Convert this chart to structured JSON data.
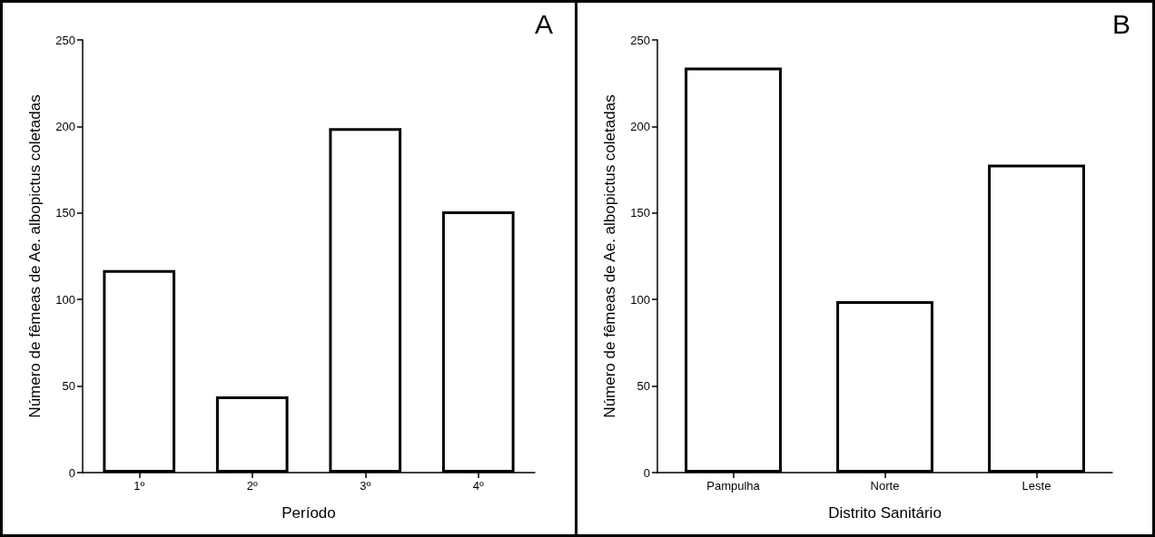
{
  "chart_data": [
    {
      "type": "bar",
      "xlabel": "Período",
      "ylabel": "Número de fêmeas de Ae. albopictus coletadas",
      "categories": [
        "1º",
        "2º",
        "3º",
        "4º"
      ],
      "values": [
        117,
        44,
        199,
        151
      ],
      "color": "#ffffff",
      "ylim": [
        0,
        250
      ],
      "yticks": [
        0,
        50,
        100,
        150,
        200,
        250
      ],
      "grid": false,
      "annotations": [
        "A"
      ]
    },
    {
      "type": "bar",
      "xlabel": "Distrito Sanitário",
      "ylabel": "Número de fêmeas de Ae. albopictus coletadas",
      "categories": [
        "Pampulha",
        "Norte",
        "Leste"
      ],
      "values": [
        234,
        99,
        178
      ],
      "color": "#ffffff",
      "ylim": [
        0,
        250
      ],
      "yticks": [
        0,
        50,
        100,
        150,
        200,
        250
      ],
      "grid": false,
      "annotations": [
        "B"
      ]
    }
  ]
}
